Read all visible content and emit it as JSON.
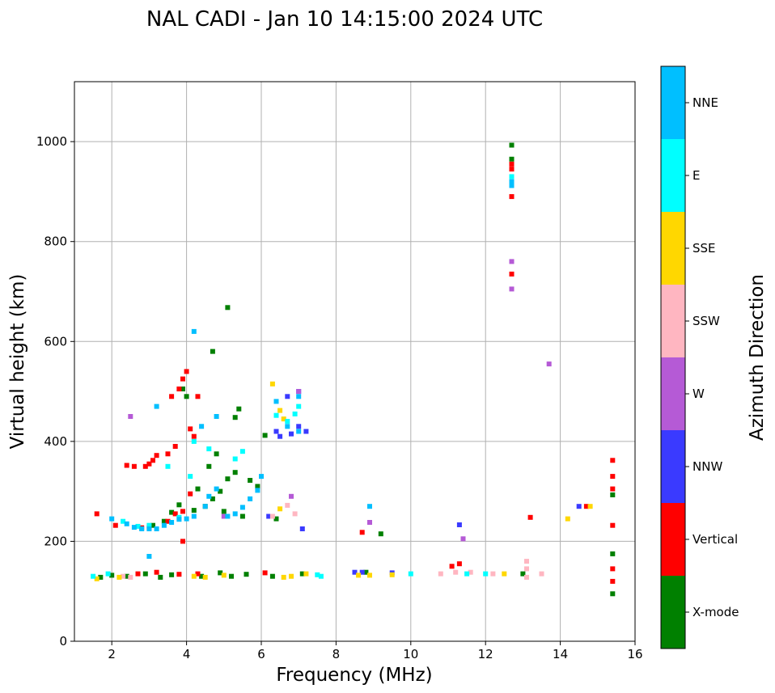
{
  "chart_data": {
    "type": "scatter",
    "title": "NAL CADI - Jan 10 14:15:00 2024 UTC",
    "xlabel": "Frequency (MHz)",
    "ylabel": "Virtual height (km)",
    "xlim": [
      1,
      16
    ],
    "ylim": [
      0,
      1120
    ],
    "xticks": [
      2,
      4,
      6,
      8,
      10,
      12,
      14,
      16
    ],
    "yticks": [
      0,
      200,
      400,
      600,
      800,
      1000
    ],
    "grid": true,
    "colorbar": {
      "label": "Azimuth Direction",
      "categories": [
        {
          "name": "X-mode",
          "color": "#008000"
        },
        {
          "name": "Vertical",
          "color": "#ff0000"
        },
        {
          "name": "NNW",
          "color": "#3a3aff"
        },
        {
          "name": "W",
          "color": "#b55ad6"
        },
        {
          "name": "SSW",
          "color": "#ffb6c1"
        },
        {
          "name": "SSE",
          "color": "#ffd700"
        },
        {
          "name": "E",
          "color": "#00ffff"
        },
        {
          "name": "NNE",
          "color": "#00bfff"
        }
      ]
    },
    "series": [
      {
        "name": "X-mode",
        "points": [
          [
            1.7,
            128
          ],
          [
            2.0,
            132
          ],
          [
            2.4,
            130
          ],
          [
            2.9,
            135
          ],
          [
            3.3,
            128
          ],
          [
            3.6,
            133
          ],
          [
            4.4,
            130
          ],
          [
            4.9,
            137
          ],
          [
            5.2,
            130
          ],
          [
            5.6,
            134
          ],
          [
            6.3,
            130
          ],
          [
            7.1,
            135
          ],
          [
            3.1,
            232
          ],
          [
            3.4,
            240
          ],
          [
            3.6,
            258
          ],
          [
            3.8,
            273
          ],
          [
            4.2,
            262
          ],
          [
            4.3,
            305
          ],
          [
            4.6,
            350
          ],
          [
            4.8,
            375
          ],
          [
            4.5,
            270
          ],
          [
            4.7,
            285
          ],
          [
            4.9,
            300
          ],
          [
            5.1,
            325
          ],
          [
            5.3,
            338
          ],
          [
            5.7,
            322
          ],
          [
            5.9,
            310
          ],
          [
            5.5,
            250
          ],
          [
            6.1,
            412
          ],
          [
            5.0,
            260
          ],
          [
            5.3,
            448
          ],
          [
            5.4,
            465
          ],
          [
            4.0,
            490
          ],
          [
            3.9,
            505
          ],
          [
            4.7,
            580
          ],
          [
            5.1,
            668
          ],
          [
            6.4,
            245
          ],
          [
            8.8,
            138
          ],
          [
            9.2,
            215
          ],
          [
            12.7,
            993
          ],
          [
            12.7,
            965
          ],
          [
            13.0,
            135
          ],
          [
            15.4,
            293
          ],
          [
            15.4,
            175
          ],
          [
            15.4,
            95
          ]
        ]
      },
      {
        "name": "Vertical",
        "points": [
          [
            1.6,
            255
          ],
          [
            2.1,
            232
          ],
          [
            2.4,
            352
          ],
          [
            2.6,
            350
          ],
          [
            2.8,
            227
          ],
          [
            2.9,
            350
          ],
          [
            3.0,
            355
          ],
          [
            3.1,
            362
          ],
          [
            3.2,
            372
          ],
          [
            3.5,
            375
          ],
          [
            3.7,
            390
          ],
          [
            3.5,
            240
          ],
          [
            3.7,
            255
          ],
          [
            3.9,
            260
          ],
          [
            3.0,
            228
          ],
          [
            3.6,
            490
          ],
          [
            3.8,
            505
          ],
          [
            3.9,
            525
          ],
          [
            4.0,
            540
          ],
          [
            4.1,
            425
          ],
          [
            4.2,
            410
          ],
          [
            4.3,
            490
          ],
          [
            4.1,
            295
          ],
          [
            3.9,
            200
          ],
          [
            2.7,
            135
          ],
          [
            3.2,
            138
          ],
          [
            3.8,
            134
          ],
          [
            4.3,
            135
          ],
          [
            6.1,
            137
          ],
          [
            8.7,
            218
          ],
          [
            11.1,
            150
          ],
          [
            11.3,
            155
          ],
          [
            13.2,
            248
          ],
          [
            14.7,
            270
          ],
          [
            12.7,
            955
          ],
          [
            12.7,
            945
          ],
          [
            12.7,
            890
          ],
          [
            12.7,
            735
          ],
          [
            15.4,
            362
          ],
          [
            15.4,
            330
          ],
          [
            15.4,
            305
          ],
          [
            15.4,
            232
          ],
          [
            15.4,
            145
          ],
          [
            15.4,
            120
          ]
        ]
      },
      {
        "name": "NNW",
        "points": [
          [
            6.4,
            420
          ],
          [
            6.5,
            410
          ],
          [
            6.8,
            415
          ],
          [
            7.0,
            430
          ],
          [
            7.2,
            420
          ],
          [
            6.7,
            490
          ],
          [
            7.0,
            500
          ],
          [
            6.2,
            250
          ],
          [
            7.1,
            225
          ],
          [
            8.5,
            138
          ],
          [
            8.7,
            138
          ],
          [
            9.5,
            137
          ],
          [
            11.3,
            233
          ],
          [
            14.5,
            270
          ]
        ]
      },
      {
        "name": "W",
        "points": [
          [
            2.5,
            450
          ],
          [
            6.8,
            290
          ],
          [
            7.0,
            500
          ],
          [
            8.9,
            238
          ],
          [
            11.4,
            205
          ],
          [
            12.7,
            760
          ],
          [
            12.7,
            705
          ],
          [
            13.7,
            555
          ],
          [
            5.0,
            250
          ]
        ]
      },
      {
        "name": "SSW",
        "points": [
          [
            2.3,
            130
          ],
          [
            2.5,
            128
          ],
          [
            6.3,
            250
          ],
          [
            6.7,
            272
          ],
          [
            10.8,
            135
          ],
          [
            11.2,
            138
          ],
          [
            11.6,
            138
          ],
          [
            12.2,
            135
          ],
          [
            13.1,
            160
          ],
          [
            13.1,
            145
          ],
          [
            13.1,
            128
          ],
          [
            13.5,
            135
          ],
          [
            6.9,
            255
          ]
        ]
      },
      {
        "name": "SSE",
        "points": [
          [
            1.6,
            125
          ],
          [
            2.2,
            128
          ],
          [
            4.2,
            130
          ],
          [
            4.5,
            128
          ],
          [
            5.0,
            132
          ],
          [
            6.6,
            128
          ],
          [
            6.8,
            130
          ],
          [
            7.2,
            135
          ],
          [
            8.6,
            132
          ],
          [
            8.9,
            132
          ],
          [
            9.5,
            133
          ],
          [
            12.5,
            135
          ],
          [
            14.2,
            245
          ],
          [
            14.8,
            270
          ],
          [
            6.5,
            462
          ],
          [
            6.6,
            445
          ],
          [
            6.3,
            515
          ],
          [
            6.5,
            265
          ]
        ]
      },
      {
        "name": "E",
        "points": [
          [
            1.5,
            130
          ],
          [
            1.9,
            135
          ],
          [
            2.3,
            240
          ],
          [
            2.7,
            230
          ],
          [
            3.0,
            232
          ],
          [
            3.8,
            248
          ],
          [
            4.1,
            330
          ],
          [
            4.2,
            400
          ],
          [
            4.6,
            385
          ],
          [
            5.3,
            365
          ],
          [
            5.5,
            380
          ],
          [
            6.4,
            452
          ],
          [
            6.7,
            440
          ],
          [
            6.9,
            455
          ],
          [
            7.0,
            470
          ],
          [
            7.5,
            133
          ],
          [
            7.6,
            130
          ],
          [
            10.0,
            135
          ],
          [
            11.5,
            135
          ],
          [
            12.0,
            135
          ],
          [
            12.7,
            930
          ],
          [
            3.5,
            350
          ]
        ]
      },
      {
        "name": "NNE",
        "points": [
          [
            2.0,
            245
          ],
          [
            2.4,
            235
          ],
          [
            2.6,
            228
          ],
          [
            2.8,
            225
          ],
          [
            3.0,
            225
          ],
          [
            3.2,
            225
          ],
          [
            3.4,
            232
          ],
          [
            3.6,
            238
          ],
          [
            3.8,
            244
          ],
          [
            3.2,
            470
          ],
          [
            4.0,
            245
          ],
          [
            4.2,
            250
          ],
          [
            4.5,
            270
          ],
          [
            4.6,
            290
          ],
          [
            4.8,
            305
          ],
          [
            5.1,
            250
          ],
          [
            5.3,
            255
          ],
          [
            5.5,
            268
          ],
          [
            5.7,
            285
          ],
          [
            5.9,
            302
          ],
          [
            6.0,
            330
          ],
          [
            4.4,
            430
          ],
          [
            4.8,
            450
          ],
          [
            6.4,
            480
          ],
          [
            6.7,
            430
          ],
          [
            7.0,
            420
          ],
          [
            7.0,
            490
          ],
          [
            8.9,
            270
          ],
          [
            12.7,
            920
          ],
          [
            12.7,
            912
          ],
          [
            4.2,
            620
          ],
          [
            3.0,
            170
          ]
        ]
      }
    ]
  }
}
